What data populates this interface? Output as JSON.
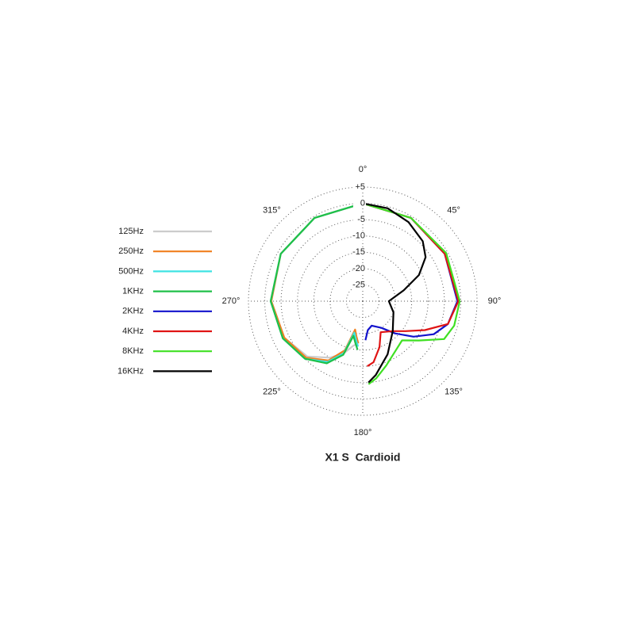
{
  "chart_data": {
    "type": "polar",
    "title": "X1 S  Cardioid",
    "rlim": [
      -30,
      5
    ],
    "rticks": [
      {
        "value": 5,
        "label": "+5"
      },
      0,
      -5,
      -10,
      -15,
      -20,
      -25
    ],
    "angle_ticks": [
      {
        "value": 0,
        "label": "0°"
      },
      {
        "value": 45,
        "label": "45°"
      },
      {
        "value": 90,
        "label": "90°"
      },
      {
        "value": 135,
        "label": "135°"
      },
      {
        "value": 180,
        "label": "180°"
      },
      {
        "value": 225,
        "label": "225°"
      },
      {
        "value": 270,
        "label": "270°"
      },
      {
        "value": 315,
        "label": "315°"
      }
    ],
    "series": [
      {
        "name": "125Hz",
        "color": "#cccccc",
        "theta": [
          360,
          330,
          300,
          270,
          245,
          225,
          210,
          200,
          192,
          186
        ],
        "values": [
          0,
          -0.5,
          -1,
          -2,
          -3.5,
          -6,
          -10,
          -13,
          -16,
          -17
        ]
      },
      {
        "name": "250Hz",
        "color": "#f07f1e",
        "theta": [
          360,
          330,
          300,
          270,
          245,
          225,
          210,
          200,
          195,
          190,
          186
        ],
        "values": [
          0,
          -0.5,
          -1,
          -2,
          -3.5,
          -5.5,
          -9,
          -14,
          -21,
          -19,
          -17
        ]
      },
      {
        "name": "500Hz",
        "color": "#3fe3e3",
        "theta": [
          360,
          330,
          300,
          270,
          245,
          225,
          210,
          200,
          195,
          190,
          186
        ],
        "values": [
          0,
          -0.5,
          -1,
          -1.8,
          -3,
          -5,
          -8.5,
          -13,
          -20,
          -18,
          -16
        ]
      },
      {
        "name": "1KHz",
        "color": "#1fc048",
        "theta": [
          360,
          330,
          300,
          270,
          245,
          225,
          210,
          200,
          195,
          190,
          186
        ],
        "values": [
          0,
          -0.5,
          -1,
          -1.8,
          -3,
          -5,
          -8,
          -12.5,
          -19,
          -17,
          -15
        ]
      },
      {
        "name": "2KHz",
        "color": "#1212cc",
        "theta": [
          0,
          30,
          60,
          90,
          105,
          115,
          125,
          135,
          145,
          160,
          170,
          176
        ],
        "values": [
          0,
          -0.5,
          -1,
          -1,
          -3,
          -6,
          -11,
          -16,
          -20,
          -22,
          -21,
          -18
        ]
      },
      {
        "name": "4KHz",
        "color": "#e01414",
        "theta": [
          0,
          30,
          60,
          90,
          105,
          115,
          125,
          135,
          150,
          160,
          170,
          176
        ],
        "values": [
          0,
          -0.5,
          -1,
          -0.7,
          -3,
          -9,
          -14,
          -17,
          -19,
          -15,
          -11,
          -10
        ]
      },
      {
        "name": "8KHz",
        "color": "#3fe023",
        "theta": [
          0,
          30,
          60,
          90,
          105,
          115,
          125,
          135,
          145,
          160,
          170,
          176
        ],
        "values": [
          0,
          -0.5,
          -0.5,
          -0.3,
          -1,
          -2.5,
          -9,
          -13,
          -12,
          -9,
          -6,
          -4.5
        ]
      },
      {
        "name": "16KHz",
        "color": "#000000",
        "theta": [
          0,
          15,
          30,
          45,
          55,
          65,
          75,
          90,
          110,
          135,
          155,
          170,
          176
        ],
        "values": [
          0,
          -0.5,
          -2,
          -4,
          -6.5,
          -11,
          -17,
          -22,
          -20,
          -17,
          -12,
          -7,
          -5
        ]
      }
    ]
  }
}
